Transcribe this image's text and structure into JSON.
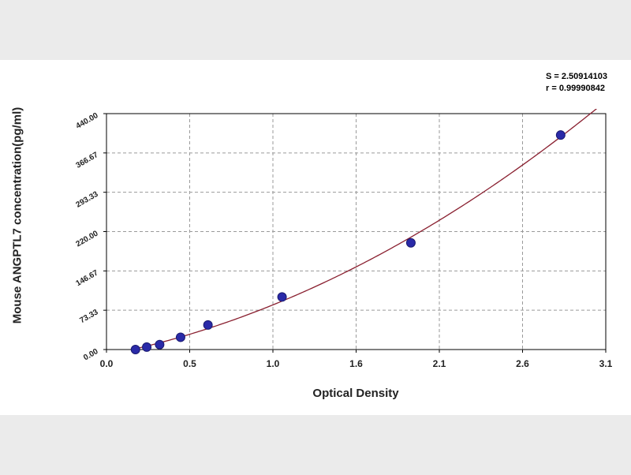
{
  "chart_data": {
    "type": "scatter",
    "title": "",
    "xlabel": "Optical Density",
    "ylabel": "Mouse ANGPTL7 concentration(pg/ml)",
    "xlim": [
      0.0,
      3.1
    ],
    "ylim": [
      0.0,
      440.0
    ],
    "x_ticks": [
      "0.0",
      "0.5",
      "1.0",
      "1.6",
      "2.1",
      "2.6",
      "3.1"
    ],
    "y_ticks": [
      "0.00",
      "73.33",
      "146.67",
      "220.00",
      "293.33",
      "366.67",
      "440.00"
    ],
    "grid": true,
    "fit_stats": [
      "S = 2.50914103",
      "r = 0.99990842"
    ],
    "points": [
      {
        "x": 0.18,
        "y": 0.0
      },
      {
        "x": 0.25,
        "y": 4.6
      },
      {
        "x": 0.33,
        "y": 9.2
      },
      {
        "x": 0.46,
        "y": 22.9
      },
      {
        "x": 0.63,
        "y": 45.8
      },
      {
        "x": 1.09,
        "y": 98.0
      },
      {
        "x": 1.89,
        "y": 199.0
      },
      {
        "x": 2.82,
        "y": 400.0
      }
    ],
    "colors": {
      "point": "#2a2aa8",
      "curve": "#8a2030",
      "grid": "#9a9a9a"
    }
  }
}
